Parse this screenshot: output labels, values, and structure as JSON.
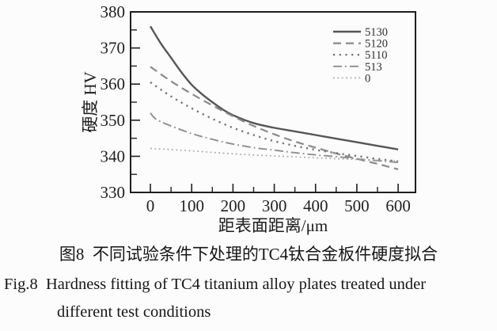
{
  "figure": {
    "captions": {
      "zh": "图8  不同试验条件下处理的TC4钛合金板件硬度拟合",
      "en_line1": "Fig.8  Hardness fitting of TC4 titanium alloy plates treated under",
      "en_line2": "different test conditions"
    }
  },
  "chart_data": {
    "type": "line",
    "title": "",
    "xlabel": "距表面距离/μm",
    "ylabel": "硬度 HV",
    "xlim": [
      -48,
      642
    ],
    "ylim": [
      330,
      380
    ],
    "x_ticks_major": [
      0,
      100,
      200,
      300,
      400,
      500,
      600
    ],
    "x_ticks_minor": [
      50,
      150,
      250,
      350,
      450,
      550
    ],
    "y_ticks_major": [
      330,
      340,
      350,
      360,
      370,
      380
    ],
    "y_ticks_minor": [
      335,
      345,
      355,
      365,
      375
    ],
    "grid": false,
    "legend_position": "top-right",
    "axis_color": "#1f1f1f",
    "series": [
      {
        "name": "5130",
        "style": "solid",
        "color": "#565656",
        "width": 2.4,
        "dash": "",
        "points": [
          [
            0,
            376
          ],
          [
            25,
            371.3
          ],
          [
            50,
            367.3
          ],
          [
            75,
            363.3
          ],
          [
            100,
            359.8
          ],
          [
            125,
            357.2
          ],
          [
            150,
            355.0
          ],
          [
            175,
            353.0
          ],
          [
            200,
            351.4
          ],
          [
            250,
            349.2
          ],
          [
            300,
            347.9
          ],
          [
            350,
            346.9
          ],
          [
            400,
            345.9
          ],
          [
            450,
            344.9
          ],
          [
            500,
            343.9
          ],
          [
            550,
            342.9
          ],
          [
            600,
            341.9
          ]
        ]
      },
      {
        "name": "5120",
        "style": "dashed",
        "color": "#8a8a8a",
        "width": 2.2,
        "dash": "10 6",
        "points": [
          [
            0,
            364.8
          ],
          [
            50,
            360.8
          ],
          [
            100,
            357.3
          ],
          [
            150,
            354.1
          ],
          [
            200,
            351.1
          ],
          [
            250,
            348.4
          ],
          [
            300,
            346.1
          ],
          [
            350,
            344.1
          ],
          [
            400,
            342.4
          ],
          [
            450,
            340.8
          ],
          [
            500,
            339.3
          ],
          [
            550,
            337.9
          ],
          [
            600,
            336.4
          ]
        ]
      },
      {
        "name": "5110",
        "style": "dotted",
        "color": "#757575",
        "width": 2.4,
        "dash": "2.2 5.5",
        "points": [
          [
            0,
            360.5
          ],
          [
            50,
            356.6
          ],
          [
            100,
            353.3
          ],
          [
            150,
            350.4
          ],
          [
            200,
            347.9
          ],
          [
            250,
            345.9
          ],
          [
            300,
            344.2
          ],
          [
            350,
            342.9
          ],
          [
            400,
            341.8
          ],
          [
            450,
            340.9
          ],
          [
            500,
            340.1
          ],
          [
            550,
            339.3
          ],
          [
            600,
            338.6
          ]
        ]
      },
      {
        "name": "513",
        "style": "dash-dot",
        "color": "#8f8f8f",
        "width": 1.9,
        "dash": "11 4 1.8 4",
        "points": [
          [
            0,
            352.0
          ],
          [
            10,
            350.6
          ],
          [
            25,
            349.6
          ],
          [
            50,
            348.4
          ],
          [
            100,
            346.3
          ],
          [
            150,
            344.7
          ],
          [
            200,
            343.4
          ],
          [
            250,
            342.4
          ],
          [
            300,
            341.7
          ],
          [
            350,
            341.0
          ],
          [
            400,
            340.4
          ],
          [
            450,
            339.9
          ],
          [
            500,
            339.3
          ],
          [
            550,
            338.8
          ],
          [
            600,
            338.3
          ]
        ]
      },
      {
        "name": "0",
        "style": "fine-dot",
        "color": "#a8a8a8",
        "width": 1.7,
        "dash": "1.8 3.6",
        "points": [
          [
            0,
            342.2
          ],
          [
            100,
            341.5
          ],
          [
            200,
            340.7
          ],
          [
            300,
            340.1
          ],
          [
            400,
            339.6
          ],
          [
            500,
            339.1
          ],
          [
            600,
            338.7
          ]
        ]
      }
    ]
  }
}
